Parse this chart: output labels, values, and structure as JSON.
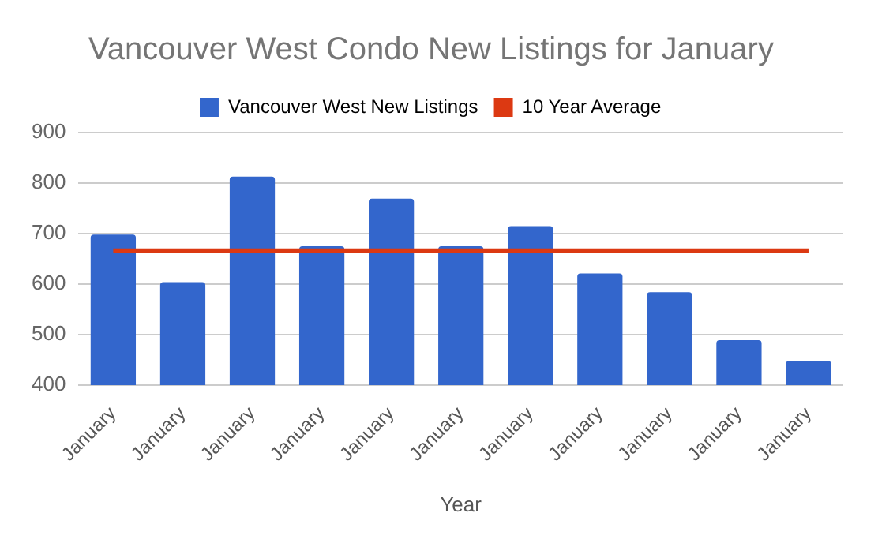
{
  "chart_data": {
    "type": "bar",
    "title": "Vancouver West Condo New Listings for January",
    "xlabel": "Year",
    "categories": [
      "January",
      "January",
      "January",
      "January",
      "January",
      "January",
      "January",
      "January",
      "January",
      "January",
      "January"
    ],
    "series": [
      {
        "name": "Vancouver West New Listings",
        "color": "#3366cc",
        "values": [
          698,
          604,
          813,
          675,
          769,
          675,
          715,
          621,
          584,
          489,
          448
        ]
      },
      {
        "name": "10 Year Average",
        "type": "line",
        "color": "#dc3912",
        "values": [
          666,
          666,
          666,
          666,
          666,
          666,
          666,
          666,
          666,
          666,
          666
        ]
      }
    ],
    "ylim": [
      400,
      900
    ],
    "yticks": [
      400,
      500,
      600,
      700,
      800,
      900
    ],
    "grid": "y",
    "legend": "top",
    "marker": "none"
  }
}
